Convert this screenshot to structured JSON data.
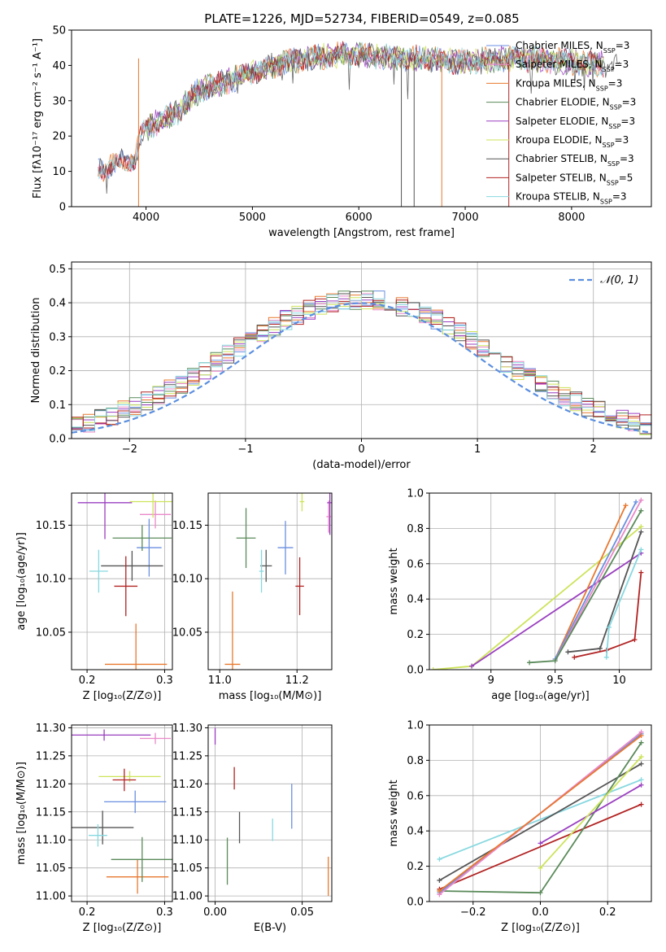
{
  "title": "PLATE=1226, MJD=52734, FIBERID=0549, z=0.085",
  "colors": {
    "chabrier_miles": "#6a8fe0",
    "salpeter_miles": "#e889c9",
    "kroupa_miles": "#e8782f",
    "chabrier_elodie": "#5a8a5a",
    "salpeter_elodie": "#9a3fc0",
    "kroupa_elodie": "#cde35a",
    "chabrier_stelib": "#555555",
    "salpeter_stelib": "#b22222",
    "kroupa_stelib": "#87d8e0",
    "normal": "#5b8fe0"
  },
  "chart_data": [
    {
      "id": "spectrum",
      "type": "line",
      "title": "PLATE=1226, MJD=52734, FIBERID=0549, z=0.085",
      "xlabel": "wavelength [Angstrom, rest frame]",
      "ylabel": "Flux [fλ10⁻¹⁷ erg cm⁻² s⁻¹ A⁻¹]",
      "xlim": [
        3300,
        8750
      ],
      "ylim": [
        0,
        50
      ],
      "xticks": [
        4000,
        5000,
        6000,
        7000,
        8000
      ],
      "yticks": [
        0,
        10,
        20,
        30,
        40,
        50
      ],
      "grid": false,
      "legend": "top-right",
      "series": [
        {
          "name": "Chabrier MILES, N_SSP=3"
        },
        {
          "name": "Salpeter MILES, N_SSP=3"
        },
        {
          "name": "Kroupa MILES, N_SSP=3"
        },
        {
          "name": "Chabrier ELODIE, N_SSP=3"
        },
        {
          "name": "Salpeter ELODIE, N_SSP=3"
        },
        {
          "name": "Kroupa ELODIE, N_SSP=3"
        },
        {
          "name": "Chabrier STELIB, N_SSP=3"
        },
        {
          "name": "Salpeter STELIB, N_SSP=5"
        },
        {
          "name": "Kroupa STELIB, N_SSP=3"
        }
      ],
      "continuum": {
        "x": [
          3550,
          3700,
          3900,
          3950,
          4000,
          4300,
          4500,
          4800,
          5000,
          5200,
          5500,
          5800,
          6000,
          6500,
          7000,
          7500,
          8000,
          8400
        ],
        "y": [
          10,
          12,
          14,
          20,
          22,
          27,
          33,
          36,
          38,
          40,
          42,
          43,
          43,
          42,
          41,
          42,
          41,
          40
        ]
      }
    },
    {
      "id": "residuals",
      "type": "step",
      "xlabel": "(data-model)/error",
      "ylabel": "Normed distribution",
      "xlim": [
        -2.5,
        2.5
      ],
      "ylim": [
        0,
        0.52
      ],
      "xticks": [
        -2,
        -1,
        0,
        1,
        2
      ],
      "yticks": [
        0.0,
        0.1,
        0.2,
        0.3,
        0.4,
        0.5
      ],
      "grid": true,
      "legend": "top-right",
      "normal_label": "𝒩(0, 1)"
    },
    {
      "id": "age_vs_Z",
      "type": "errorbar",
      "xlabel": "Z [log₁₀(Z/Z⊙)]",
      "ylabel": "age  [log₁₀(age/yr)]",
      "xlim": [
        0.18,
        0.31
      ],
      "ylim": [
        10.015,
        10.18
      ],
      "xticks": [
        0.2,
        0.3
      ],
      "xtick_labels": [
        "0.2",
        "0.3"
      ],
      "yticks": [
        10.05,
        10.1,
        10.15
      ],
      "grid": true,
      "points": [
        {
          "x": 0.28,
          "y": 10.129,
          "xerr": 0.016,
          "yerr": 0.027,
          "c": "chabrier_miles"
        },
        {
          "x": 0.288,
          "y": 10.16,
          "xerr": 0.02,
          "yerr": 0.013,
          "c": "salpeter_miles"
        },
        {
          "x": 0.263,
          "y": 10.02,
          "xerr": 0.04,
          "yerr": 0.038,
          "c": "kroupa_miles"
        },
        {
          "x": 0.271,
          "y": 10.138,
          "xerr": 0.038,
          "yerr": 0.012,
          "c": "chabrier_elodie"
        },
        {
          "x": 0.223,
          "y": 10.171,
          "xerr": 0.035,
          "yerr": 0.034,
          "c": "salpeter_elodie"
        },
        {
          "x": 0.285,
          "y": 10.172,
          "xerr": 0.03,
          "yerr": 0.015,
          "c": "kroupa_elodie"
        },
        {
          "x": 0.258,
          "y": 10.112,
          "xerr": 0.04,
          "yerr": 0.014,
          "c": "chabrier_stelib"
        },
        {
          "x": 0.25,
          "y": 10.093,
          "xerr": 0.015,
          "yerr": 0.028,
          "c": "salpeter_stelib"
        },
        {
          "x": 0.215,
          "y": 10.107,
          "xerr": 0.012,
          "yerr": 0.02,
          "c": "kroupa_stelib"
        }
      ]
    },
    {
      "id": "age_vs_mass",
      "type": "errorbar",
      "xlabel": "mass [log₁₀(M/M⊙)]",
      "ylabel": "",
      "xlim": [
        10.97,
        11.29
      ],
      "ylim": [
        10.015,
        10.18
      ],
      "xticks": [
        11.0,
        11.2
      ],
      "xtick_labels": [
        "11.0",
        "11.2"
      ],
      "yticks": [
        10.05,
        10.1,
        10.15
      ],
      "grid": true,
      "points": [
        {
          "x": 11.17,
          "y": 10.129,
          "xerr": 0.02,
          "yerr": 0.025,
          "c": "chabrier_miles"
        },
        {
          "x": 11.282,
          "y": 10.158,
          "xerr": 0.006,
          "yerr": 0.015,
          "c": "salpeter_miles"
        },
        {
          "x": 11.033,
          "y": 10.02,
          "xerr": 0.02,
          "yerr": 0.068,
          "c": "kroupa_miles"
        },
        {
          "x": 11.068,
          "y": 10.138,
          "xerr": 0.025,
          "yerr": 0.028,
          "c": "chabrier_elodie"
        },
        {
          "x": 11.285,
          "y": 10.171,
          "xerr": 0.007,
          "yerr": 0.03,
          "c": "salpeter_elodie"
        },
        {
          "x": 11.213,
          "y": 10.172,
          "xerr": 0.006,
          "yerr": 0.009,
          "c": "kroupa_elodie"
        },
        {
          "x": 11.12,
          "y": 10.112,
          "xerr": 0.015,
          "yerr": 0.015,
          "c": "chabrier_stelib"
        },
        {
          "x": 11.207,
          "y": 10.093,
          "xerr": 0.011,
          "yerr": 0.027,
          "c": "salpeter_stelib"
        },
        {
          "x": 11.108,
          "y": 10.107,
          "xerr": 0.006,
          "yerr": 0.02,
          "c": "kroupa_stelib"
        }
      ]
    },
    {
      "id": "weight_vs_age",
      "type": "line",
      "xlabel": "age  [log₁₀(age/yr)]",
      "ylabel": "mass weight",
      "xlim": [
        8.52,
        10.25
      ],
      "ylim": [
        0,
        1.0
      ],
      "xticks": [
        9.0,
        9.5,
        10.0
      ],
      "yticks": [
        0.0,
        0.2,
        0.4,
        0.6,
        0.8,
        1.0
      ],
      "grid": true
    },
    {
      "id": "mass_vs_Z",
      "type": "errorbar",
      "xlabel": "Z [log₁₀(Z/Z⊙)]",
      "ylabel": "mass [log₁₀(M/M⊙)]",
      "xlim": [
        0.18,
        0.31
      ],
      "ylim": [
        10.99,
        11.305
      ],
      "xticks": [
        0.2,
        0.3
      ],
      "xtick_labels": [
        "0.2",
        "0.3"
      ],
      "yticks": [
        11.0,
        11.05,
        11.1,
        11.15,
        11.2,
        11.25,
        11.3
      ],
      "grid": true,
      "points": [
        {
          "x": 0.262,
          "y": 11.168,
          "xerr": 0.04,
          "yerr": 0.02,
          "c": "chabrier_miles"
        },
        {
          "x": 0.288,
          "y": 11.281,
          "xerr": 0.02,
          "yerr": 0.01,
          "c": "salpeter_miles"
        },
        {
          "x": 0.265,
          "y": 11.034,
          "xerr": 0.04,
          "yerr": 0.03,
          "c": "kroupa_miles"
        },
        {
          "x": 0.271,
          "y": 11.065,
          "xerr": 0.04,
          "yerr": 0.04,
          "c": "chabrier_elodie"
        },
        {
          "x": 0.222,
          "y": 11.287,
          "xerr": 0.06,
          "yerr": 0.01,
          "c": "salpeter_elodie"
        },
        {
          "x": 0.255,
          "y": 11.213,
          "xerr": 0.04,
          "yerr": 0.01,
          "c": "kroupa_elodie"
        },
        {
          "x": 0.22,
          "y": 11.122,
          "xerr": 0.04,
          "yerr": 0.03,
          "c": "chabrier_stelib"
        },
        {
          "x": 0.248,
          "y": 11.207,
          "xerr": 0.015,
          "yerr": 0.02,
          "c": "salpeter_stelib"
        },
        {
          "x": 0.214,
          "y": 11.108,
          "xerr": 0.012,
          "yerr": 0.02,
          "c": "kroupa_stelib"
        }
      ]
    },
    {
      "id": "mass_vs_ebv",
      "type": "errorbar",
      "xlabel": "E(B-V)",
      "ylabel": "",
      "xlim": [
        -0.004,
        0.067
      ],
      "ylim": [
        10.99,
        11.305
      ],
      "xticks": [
        0.0,
        0.05
      ],
      "xtick_labels": [
        "0.00",
        "0.05"
      ],
      "yticks": [
        11.0,
        11.05,
        11.1,
        11.15,
        11.2,
        11.25,
        11.3
      ],
      "grid": true,
      "points": [
        {
          "x": 0.044,
          "y": 11.16,
          "xerr": 0,
          "yerr": 0.04,
          "c": "chabrier_miles"
        },
        {
          "x": 0.0,
          "y": 11.285,
          "xerr": 0,
          "yerr": 0.015,
          "c": "salpeter_elodie"
        },
        {
          "x": 0.065,
          "y": 11.035,
          "xerr": 0,
          "yerr": 0.035,
          "c": "kroupa_miles"
        },
        {
          "x": 0.007,
          "y": 11.062,
          "xerr": 0,
          "yerr": 0.042,
          "c": "chabrier_elodie"
        },
        {
          "x": 0.014,
          "y": 11.122,
          "xerr": 0,
          "yerr": 0.028,
          "c": "chabrier_stelib"
        },
        {
          "x": 0.011,
          "y": 11.21,
          "xerr": 0,
          "yerr": 0.02,
          "c": "salpeter_stelib"
        },
        {
          "x": 0.033,
          "y": 11.118,
          "xerr": 0,
          "yerr": 0.02,
          "c": "kroupa_stelib"
        }
      ]
    },
    {
      "id": "weight_vs_Z",
      "type": "line",
      "xlabel": "Z [log₁₀(Z/Z⊙)]",
      "ylabel": "mass weight",
      "xlim": [
        -0.33,
        0.33
      ],
      "ylim": [
        0,
        1.0
      ],
      "xticks": [
        -0.2,
        0.0,
        0.2
      ],
      "xtick_labels": [
        "−0.2",
        "0.0",
        "0.2"
      ],
      "yticks": [
        0.0,
        0.2,
        0.4,
        0.6,
        0.8,
        1.0
      ],
      "grid": true,
      "series": [
        {
          "c": "kroupa_stelib",
          "x": [
            -0.3,
            0.3
          ],
          "y": [
            0.24,
            0.69
          ]
        },
        {
          "c": "chabrier_stelib",
          "x": [
            -0.3,
            0.3
          ],
          "y": [
            0.12,
            0.78
          ]
        },
        {
          "c": "salpeter_stelib",
          "x": [
            -0.3,
            0.3
          ],
          "y": [
            0.07,
            0.55
          ]
        },
        {
          "c": "chabrier_elodie",
          "x": [
            -0.3,
            0.0,
            0.3
          ],
          "y": [
            0.06,
            0.05,
            0.9
          ]
        },
        {
          "c": "salpeter_elodie",
          "x": [
            0.0,
            0.3
          ],
          "y": [
            0.33,
            0.66
          ]
        },
        {
          "c": "kroupa_elodie",
          "x": [
            0.0,
            0.3
          ],
          "y": [
            0.19,
            0.82
          ]
        },
        {
          "c": "chabrier_miles",
          "x": [
            -0.3,
            0.3
          ],
          "y": [
            0.05,
            0.95
          ]
        },
        {
          "c": "salpeter_miles",
          "x": [
            -0.3,
            0.3
          ],
          "y": [
            0.04,
            0.96
          ]
        },
        {
          "c": "kroupa_miles",
          "x": [
            -0.3,
            0.3
          ],
          "y": [
            0.06,
            0.94
          ]
        }
      ]
    }
  ]
}
